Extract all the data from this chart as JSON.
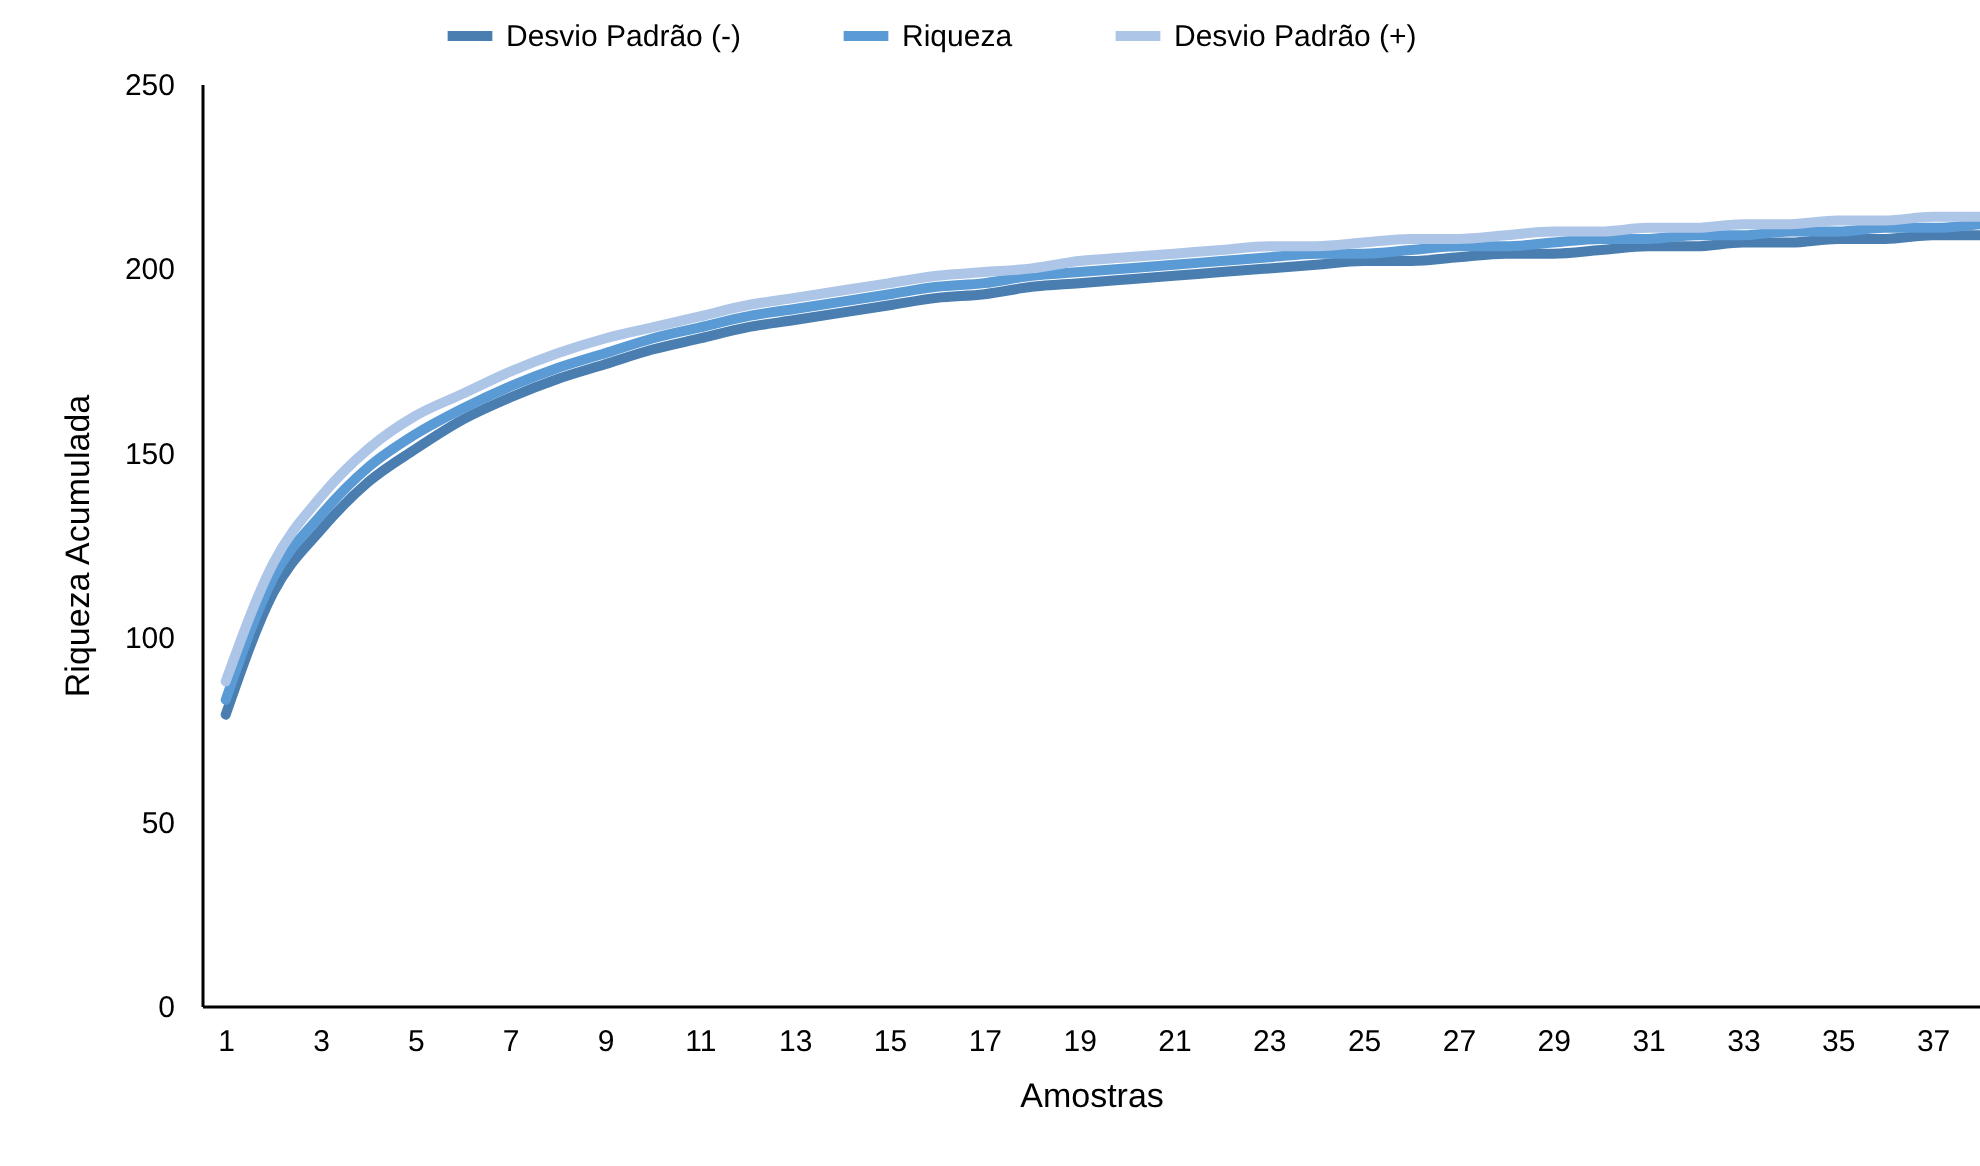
{
  "chart_data": {
    "type": "line",
    "xlabel": "Amostras",
    "ylabel": "Riqueza Acumulada",
    "x": [
      1,
      2,
      3,
      4,
      5,
      6,
      7,
      8,
      9,
      10,
      11,
      12,
      13,
      14,
      15,
      16,
      17,
      18,
      19,
      20,
      21,
      22,
      23,
      24,
      25,
      26,
      27,
      28,
      29,
      30,
      31,
      32,
      33,
      34,
      35,
      36,
      37,
      38
    ],
    "xlim": [
      0.5,
      38
    ],
    "xticks": [
      1,
      3,
      5,
      7,
      9,
      11,
      13,
      15,
      17,
      19,
      21,
      23,
      25,
      27,
      29,
      31,
      33,
      35,
      37
    ],
    "series": [
      {
        "name": "Desvio Padrão (-)",
        "color": "#4a7eb0",
        "values": [
          79,
          112,
          129,
          142,
          151,
          159,
          165,
          170,
          174,
          178,
          181,
          184,
          186,
          188,
          190,
          192,
          193,
          195,
          196,
          197,
          198,
          199,
          200,
          201,
          202,
          202,
          203,
          204,
          204,
          205,
          206,
          206,
          207,
          207,
          208,
          208,
          209,
          209
        ]
      },
      {
        "name": "Riqueza",
        "color": "#5b9bd5",
        "values": [
          83,
          116,
          133,
          146,
          155,
          162,
          168,
          173,
          177,
          181,
          184,
          187,
          189,
          191,
          193,
          195,
          196,
          198,
          199,
          200,
          201,
          202,
          203,
          204,
          204,
          205,
          206,
          206,
          207,
          208,
          208,
          209,
          209,
          210,
          210,
          211,
          211,
          212
        ]
      },
      {
        "name": "Desvio Padrão (+)",
        "color": "#adc5e7",
        "values": [
          88,
          120,
          138,
          151,
          160,
          166,
          172,
          177,
          181,
          184,
          187,
          190,
          192,
          194,
          196,
          198,
          199,
          200,
          202,
          203,
          204,
          205,
          206,
          206,
          207,
          208,
          208,
          209,
          210,
          210,
          211,
          211,
          212,
          212,
          213,
          213,
          214,
          214
        ]
      }
    ],
    "ylim": [
      0,
      250
    ],
    "yticks": [
      0,
      50,
      100,
      150,
      200,
      250
    ],
    "legend": "top",
    "line_style": "solid",
    "marker": "none",
    "grid": false
  }
}
